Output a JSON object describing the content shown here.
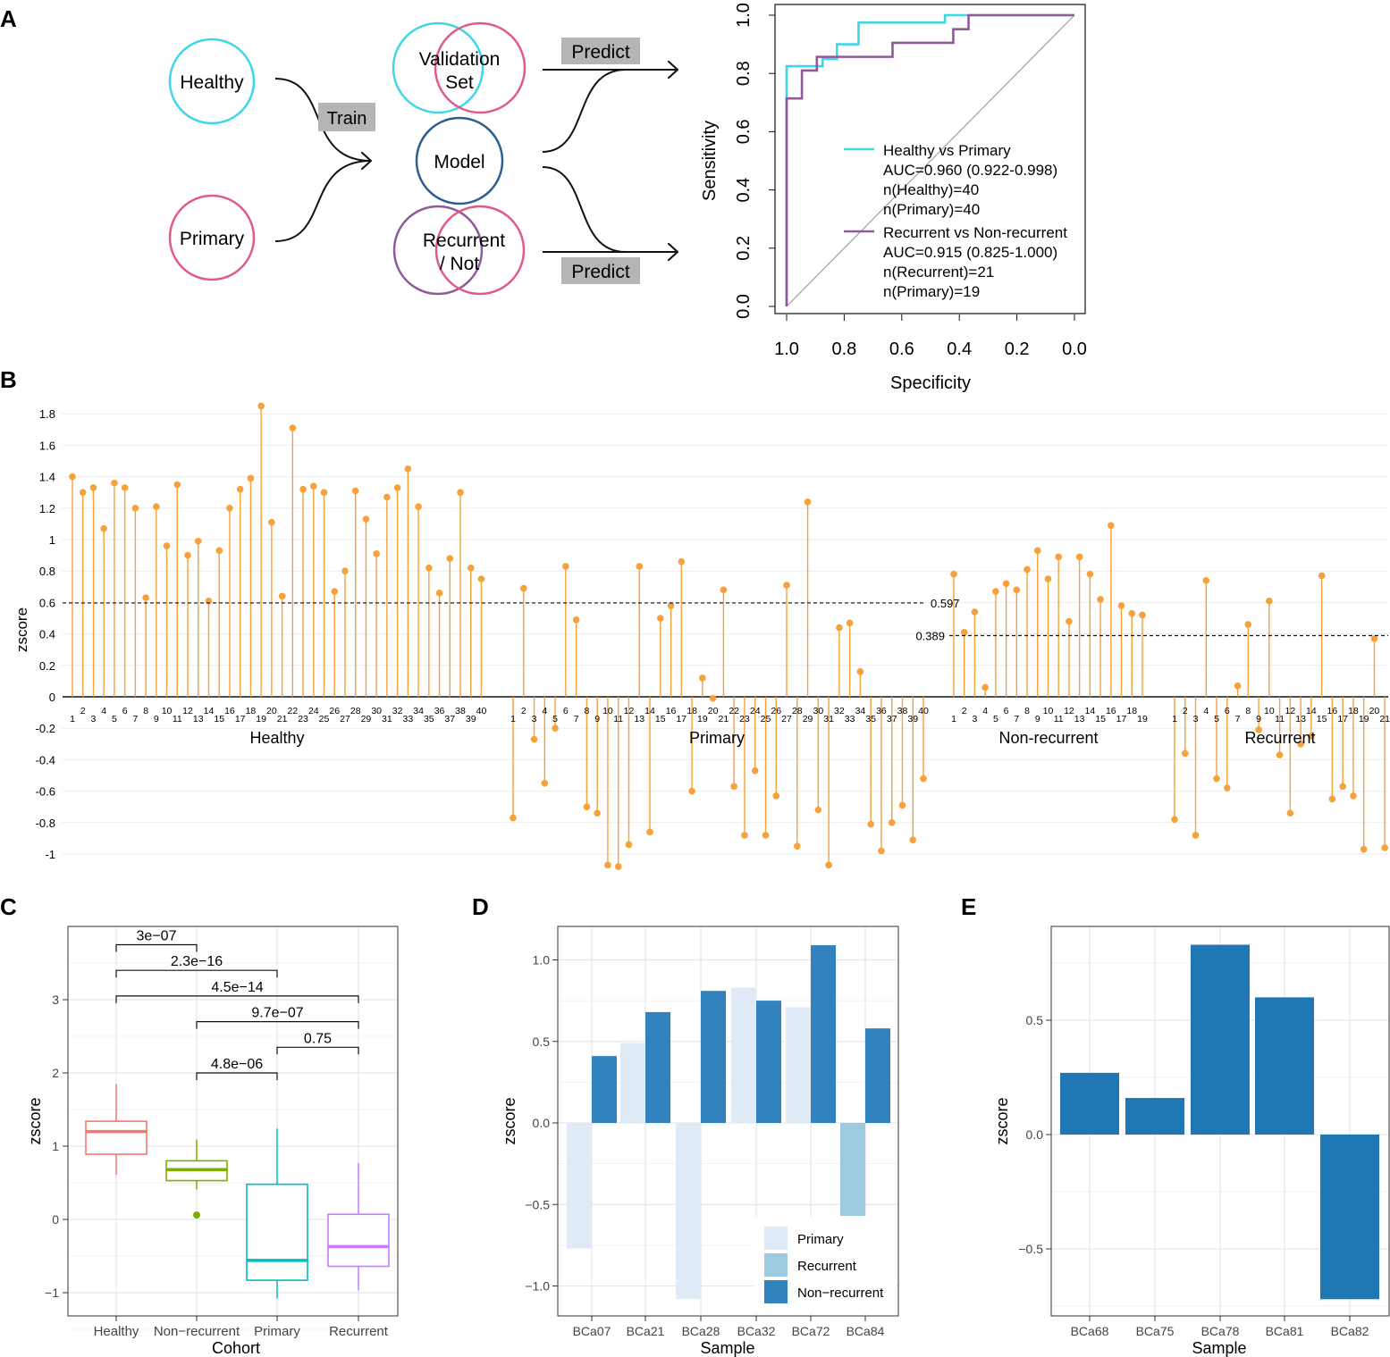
{
  "panel_letters": [
    "A",
    "B",
    "C",
    "D",
    "E"
  ],
  "panel_a": {
    "healthy": "Healthy",
    "primary": "Primary",
    "train": "Train",
    "validation_line1": "Validation",
    "validation_line2": "Set",
    "model": "Model",
    "recurrent_line1": "Recurrent",
    "recurrent_line2": "/ Not",
    "predict_top": "Predict",
    "predict_bottom": "Predict",
    "colors": {
      "healthy": "#3fd6e8",
      "primary": "#e05a8a",
      "model": "#2d5e8e",
      "recurrent": "#8e5a9a",
      "label_bg": "#b5b5b8"
    }
  },
  "chart_data": [
    {
      "id": "roc",
      "type": "line",
      "xlabel": "Specificity",
      "ylabel": "Sensitivity",
      "xlim": [
        1.0,
        0.0
      ],
      "ylim": [
        0.0,
        1.0
      ],
      "x_ticks": [
        "1.0",
        "0.8",
        "0.6",
        "0.4",
        "0.2",
        "0.0"
      ],
      "y_ticks": [
        "0.0",
        "0.2",
        "0.4",
        "0.6",
        "0.8",
        "1.0"
      ],
      "series": [
        {
          "name": "Healthy vs Primary",
          "color": "#3fd6e8",
          "legend_lines": [
            "Healthy vs Primary",
            "AUC=0.960 (0.922-0.998)",
            "n(Healthy)=40",
            "n(Primary)=40"
          ],
          "x": [
            1.0,
            1.0,
            1.0,
            0.875,
            0.875,
            0.825,
            0.825,
            0.75,
            0.75,
            0.45,
            0.45,
            0.38,
            0.38,
            0.0
          ],
          "y": [
            0.0,
            0.72,
            0.825,
            0.825,
            0.85,
            0.85,
            0.9,
            0.9,
            0.975,
            0.975,
            1.0,
            1.0,
            1.0,
            1.0
          ]
        },
        {
          "name": "Recurrent vs Non-recurrent",
          "color": "#8e5a9a",
          "legend_lines": [
            "Recurrent vs Non-recurrent",
            "AUC=0.915 (0.825-1.000)",
            "n(Recurrent)=21",
            "n(Primary)=19"
          ],
          "x": [
            1.0,
            1.0,
            0.947,
            0.947,
            0.895,
            0.895,
            0.632,
            0.632,
            0.421,
            0.421,
            0.368,
            0.368,
            0.0
          ],
          "y": [
            0.0,
            0.714,
            0.714,
            0.81,
            0.81,
            0.857,
            0.857,
            0.905,
            0.905,
            0.952,
            0.952,
            1.0,
            1.0
          ]
        }
      ]
    },
    {
      "id": "lollipop",
      "type": "scatter",
      "ylabel": "zscore",
      "ylim": [
        -1.1,
        1.9
      ],
      "y_ticks": [
        -1,
        -0.8,
        -0.6,
        -0.4,
        -0.2,
        0,
        0.2,
        0.4,
        0.6,
        0.8,
        1,
        1.2,
        1.4,
        1.6,
        1.8
      ],
      "color": "#f6a13a",
      "thresholds": [
        {
          "value": 0.597,
          "label": "0.597"
        },
        {
          "value": 0.389,
          "label": "0.389"
        }
      ],
      "groups": [
        {
          "name": "Healthy",
          "values": [
            1.4,
            1.3,
            1.33,
            1.07,
            1.36,
            1.33,
            1.2,
            0.63,
            1.21,
            0.96,
            1.35,
            0.9,
            0.99,
            0.61,
            0.93,
            1.2,
            1.32,
            1.39,
            1.85,
            1.11,
            0.64,
            1.71,
            1.32,
            1.34,
            1.3,
            0.67,
            0.8,
            1.31,
            1.13,
            0.91,
            1.27,
            1.33,
            1.45,
            1.21,
            0.82,
            0.66,
            0.88,
            1.3,
            0.82,
            0.75
          ]
        },
        {
          "name": "Primary",
          "values": [
            -0.77,
            0.69,
            -0.27,
            -0.55,
            -0.2,
            0.83,
            0.49,
            -0.7,
            -0.74,
            -1.07,
            -1.08,
            -0.94,
            0.83,
            -0.86,
            0.5,
            0.58,
            0.86,
            -0.6,
            0.12,
            -0.01,
            0.68,
            -0.57,
            -0.88,
            -0.47,
            -0.88,
            -0.63,
            0.71,
            -0.95,
            1.24,
            -0.72,
            -1.07,
            0.44,
            0.47,
            0.16,
            -0.81,
            -0.98,
            -0.8,
            -0.69,
            -0.91,
            -0.52
          ]
        },
        {
          "name": "Non-recurrent",
          "values": [
            0.78,
            0.41,
            0.54,
            0.06,
            0.67,
            0.72,
            0.68,
            0.81,
            0.93,
            0.75,
            0.89,
            0.48,
            0.89,
            0.78,
            0.62,
            1.09,
            0.58,
            0.53,
            0.52
          ]
        },
        {
          "name": "Recurrent",
          "values": [
            -0.78,
            -0.36,
            -0.88,
            0.74,
            -0.52,
            -0.58,
            0.07,
            0.46,
            -0.21,
            0.61,
            -0.37,
            -0.74,
            -0.3,
            -0.25,
            0.77,
            -0.65,
            -0.57,
            -0.63,
            -0.97,
            0.37,
            -0.96
          ]
        }
      ]
    },
    {
      "id": "boxplot",
      "type": "box",
      "xlabel": "Cohort",
      "ylabel": "zscore",
      "ylim": [
        -1.3,
        4.0
      ],
      "y_ticks": [
        -1,
        0,
        1,
        2,
        3
      ],
      "categories": [
        "Healthy",
        "Non−recurrent",
        "Primary",
        "Recurrent"
      ],
      "colors": [
        "#f8766d",
        "#7cae00",
        "#00bfc4",
        "#c77cff"
      ],
      "boxes": [
        {
          "min": 0.61,
          "q1": 0.89,
          "median": 1.2,
          "q3": 1.34,
          "max": 1.85,
          "outliers": []
        },
        {
          "min": 0.41,
          "q1": 0.53,
          "median": 0.68,
          "q3": 0.8,
          "max": 1.09,
          "outliers": [
            0.06
          ]
        },
        {
          "min": -1.08,
          "q1": -0.83,
          "median": -0.56,
          "q3": 0.48,
          "max": 1.24,
          "outliers": []
        },
        {
          "min": -0.97,
          "q1": -0.64,
          "median": -0.37,
          "q3": 0.07,
          "max": 0.77,
          "outliers": []
        }
      ],
      "comparisons": [
        {
          "from": 0,
          "to": 1,
          "label": "3e−07",
          "y": 3.75
        },
        {
          "from": 0,
          "to": 2,
          "label": "2.3e−16",
          "y": 3.4
        },
        {
          "from": 0,
          "to": 3,
          "label": "4.5e−14",
          "y": 3.05
        },
        {
          "from": 1,
          "to": 3,
          "label": "9.7e−07",
          "y": 2.7
        },
        {
          "from": 2,
          "to": 3,
          "label": "0.75",
          "y": 2.35
        },
        {
          "from": 1,
          "to": 2,
          "label": "4.8e−06",
          "y": 2.0
        }
      ]
    },
    {
      "id": "bars_d",
      "type": "bar",
      "xlabel": "Sample",
      "ylabel": "zscore",
      "ylim": [
        -1.12,
        1.18
      ],
      "y_ticks": [
        "−1.0",
        "−0.5",
        "0.0",
        "0.5",
        "1.0"
      ],
      "y_tick_values": [
        -1.0,
        -0.5,
        0.0,
        0.5,
        1.0
      ],
      "categories": [
        "BCa07",
        "BCa21",
        "BCa28",
        "BCa32",
        "BCa72",
        "BCa84"
      ],
      "series": [
        {
          "name": "Primary",
          "color": "#dfeaf7",
          "values": [
            -0.77,
            0.49,
            -1.08,
            0.83,
            0.71,
            null
          ]
        },
        {
          "name": "Recurrent",
          "color": "#9ecae1",
          "values": [
            null,
            null,
            null,
            null,
            null,
            -0.57
          ]
        },
        {
          "name": "Non−recurrent",
          "color": "#3182bd",
          "values": [
            0.41,
            0.68,
            0.81,
            0.75,
            1.09,
            0.58
          ]
        }
      ],
      "legend": [
        "Primary",
        "Recurrent",
        "Non−recurrent"
      ]
    },
    {
      "id": "bars_e",
      "type": "bar",
      "xlabel": "Sample",
      "ylabel": "zscore",
      "ylim": [
        -0.8,
        0.95
      ],
      "y_ticks": [
        "−0.5",
        "0.0",
        "0.5"
      ],
      "y_tick_values": [
        -0.5,
        0.0,
        0.5
      ],
      "categories": [
        "BCa68",
        "BCa75",
        "BCa78",
        "BCa81",
        "BCa82"
      ],
      "color": "#1f78b4",
      "values": [
        0.27,
        0.16,
        0.83,
        0.6,
        -0.72
      ]
    }
  ]
}
